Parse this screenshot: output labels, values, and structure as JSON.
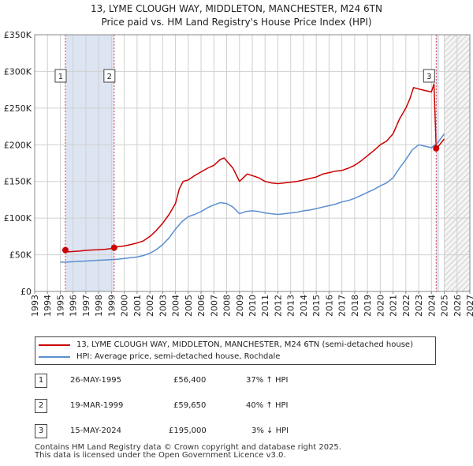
{
  "title_line1": "13, LYME CLOUGH WAY, MIDDLETON, MANCHESTER, M24 6TN",
  "title_line2": "Price paid vs. HM Land Registry's House Price Index (HPI)",
  "colors": {
    "property": "#cc0000",
    "hpi": "#5b8fcf",
    "shade": "#dde5f2",
    "marker_line": "#d44444",
    "grid": "#d0d0d0"
  },
  "chart_data": {
    "type": "line",
    "x_range": [
      1993,
      2027
    ],
    "ylim": [
      0,
      350000
    ],
    "y_ticks": [
      {
        "value": 0,
        "label": "£0"
      },
      {
        "value": 50000,
        "label": "£50K"
      },
      {
        "value": 100000,
        "label": "£100K"
      },
      {
        "value": 150000,
        "label": "£150K"
      },
      {
        "value": 200000,
        "label": "£200K"
      },
      {
        "value": 250000,
        "label": "£250K"
      },
      {
        "value": 300000,
        "label": "£300K"
      },
      {
        "value": 350000,
        "label": "£350K"
      }
    ],
    "x_ticks": [
      "1993",
      "1994",
      "1995",
      "1996",
      "1997",
      "1998",
      "1999",
      "2000",
      "2001",
      "2002",
      "2003",
      "2004",
      "2005",
      "2006",
      "2007",
      "2008",
      "2009",
      "2010",
      "2011",
      "2012",
      "2013",
      "2014",
      "2015",
      "2016",
      "2017",
      "2018",
      "2019",
      "2020",
      "2021",
      "2022",
      "2023",
      "2024",
      "2025",
      "2026",
      "2027"
    ],
    "shaded_ranges": [
      [
        1995.4,
        1999.21
      ],
      [
        2024.37,
        2024.6
      ]
    ],
    "hatch_start": 2025.0,
    "series": [
      {
        "name": "13, LYME CLOUGH WAY, MIDDLETON, MANCHESTER, M24 6TN (semi-detached house)",
        "color": "#cc0000",
        "x": [
          1995.4,
          1995.6,
          1996.0,
          1996.5,
          1997.0,
          1997.5,
          1998.0,
          1998.5,
          1999.0,
          1999.21,
          1999.5,
          2000.0,
          2000.5,
          2001.0,
          2001.5,
          2002.0,
          2002.5,
          2003.0,
          2003.5,
          2004.0,
          2004.3,
          2004.6,
          2005.0,
          2005.5,
          2006.0,
          2006.5,
          2007.0,
          2007.5,
          2007.8,
          2008.0,
          2008.5,
          2009.0,
          2009.3,
          2009.6,
          2010.0,
          2010.5,
          2011.0,
          2011.5,
          2012.0,
          2012.5,
          2013.0,
          2013.5,
          2014.0,
          2014.5,
          2015.0,
          2015.5,
          2016.0,
          2016.5,
          2017.0,
          2017.5,
          2018.0,
          2018.5,
          2019.0,
          2019.5,
          2020.0,
          2020.5,
          2021.0,
          2021.5,
          2022.0,
          2022.3,
          2022.6,
          2023.0,
          2023.5,
          2024.0,
          2024.2,
          2024.37,
          2024.5,
          2025.0
        ],
        "values": [
          56400,
          54000,
          54500,
          55000,
          56000,
          56500,
          57000,
          57500,
          58500,
          59650,
          61000,
          62000,
          64000,
          66000,
          69000,
          75000,
          83000,
          93000,
          105000,
          120000,
          140000,
          150000,
          152000,
          158000,
          163000,
          168000,
          172000,
          180000,
          182000,
          178000,
          168000,
          150000,
          155000,
          160000,
          158000,
          155000,
          150000,
          148000,
          147000,
          148000,
          149000,
          150000,
          152000,
          154000,
          156000,
          160000,
          162000,
          164000,
          165000,
          168000,
          172000,
          178000,
          185000,
          192000,
          200000,
          205000,
          215000,
          235000,
          250000,
          262000,
          278000,
          276000,
          274000,
          272000,
          283000,
          195000,
          197000,
          208000
        ]
      },
      {
        "name": "HPI: Average price, semi-detached house, Rochdale",
        "color": "#5b8fcf",
        "x": [
          1995.0,
          1995.5,
          1996.0,
          1996.5,
          1997.0,
          1997.5,
          1998.0,
          1998.5,
          1999.0,
          1999.5,
          2000.0,
          2000.5,
          2001.0,
          2001.5,
          2002.0,
          2002.5,
          2003.0,
          2003.5,
          2004.0,
          2004.5,
          2005.0,
          2005.5,
          2006.0,
          2006.5,
          2007.0,
          2007.5,
          2008.0,
          2008.5,
          2009.0,
          2009.5,
          2010.0,
          2010.5,
          2011.0,
          2011.5,
          2012.0,
          2012.5,
          2013.0,
          2013.5,
          2014.0,
          2014.5,
          2015.0,
          2015.5,
          2016.0,
          2016.5,
          2017.0,
          2017.5,
          2018.0,
          2018.5,
          2019.0,
          2019.5,
          2020.0,
          2020.5,
          2021.0,
          2021.5,
          2022.0,
          2022.5,
          2023.0,
          2023.5,
          2024.0,
          2024.5,
          2025.0
        ],
        "values": [
          40000,
          40000,
          40500,
          41000,
          41500,
          42000,
          42500,
          43000,
          43500,
          44000,
          45000,
          46000,
          47000,
          49000,
          52000,
          57000,
          64000,
          73000,
          85000,
          95000,
          102000,
          105000,
          109000,
          114000,
          118000,
          121000,
          120000,
          115000,
          106000,
          109000,
          110000,
          109000,
          107000,
          106000,
          105000,
          106000,
          107000,
          108000,
          110000,
          111000,
          113000,
          115000,
          117000,
          119000,
          122000,
          124000,
          127000,
          131000,
          135000,
          139000,
          144000,
          148000,
          155000,
          168000,
          180000,
          193000,
          200000,
          198000,
          196000,
          203000,
          215000
        ]
      }
    ],
    "annotations": [
      {
        "label": "1",
        "x": 1995.4,
        "value": 56400
      },
      {
        "label": "2",
        "x": 1999.21,
        "value": 59650
      },
      {
        "label": "3",
        "x": 2024.37,
        "value": 195000
      }
    ]
  },
  "legend": {
    "property": "13, LYME CLOUGH WAY, MIDDLETON, MANCHESTER, M24 6TN (semi-detached house)",
    "hpi": "HPI: Average price, semi-detached house, Rochdale"
  },
  "transactions": [
    {
      "num": "1",
      "date": "26-MAY-1995",
      "price": "£56,400",
      "hpi": "37% ↑ HPI"
    },
    {
      "num": "2",
      "date": "19-MAR-1999",
      "price": "£59,650",
      "hpi": "40% ↑ HPI"
    },
    {
      "num": "3",
      "date": "15-MAY-2024",
      "price": "£195,000",
      "hpi": "3% ↓ HPI"
    }
  ],
  "footer_line1": "Contains HM Land Registry data © Crown copyright and database right 2025.",
  "footer_line2": "This data is licensed under the Open Government Licence v3.0."
}
